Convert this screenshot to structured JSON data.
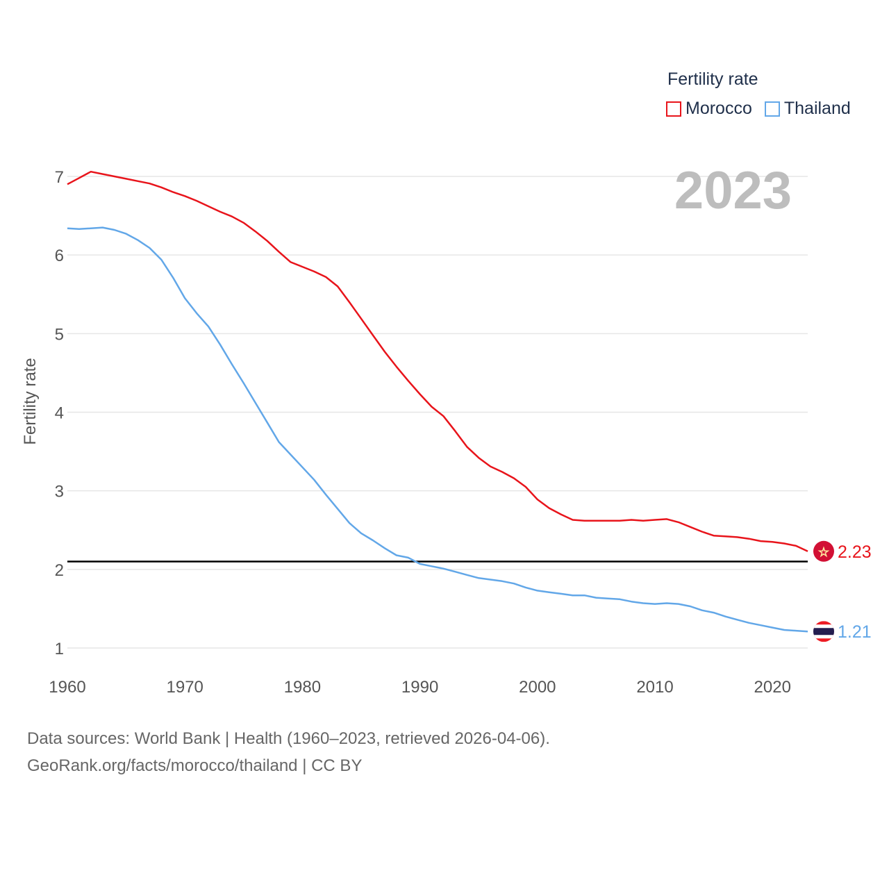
{
  "chart_data": {
    "type": "line",
    "title": "",
    "year_label": "2023",
    "legend_title": "Fertility rate",
    "ylabel": "Fertility rate",
    "xlabel": "",
    "xlim": [
      1960,
      2023
    ],
    "ylim": [
      0.9,
      7.6
    ],
    "x_ticks": [
      1960,
      1970,
      1980,
      1990,
      2000,
      2010,
      2020
    ],
    "y_ticks": [
      1,
      2,
      3,
      4,
      5,
      6,
      7
    ],
    "reference_line": 2.1,
    "x": [
      1960,
      1961,
      1962,
      1963,
      1964,
      1965,
      1966,
      1967,
      1968,
      1969,
      1970,
      1971,
      1972,
      1973,
      1974,
      1975,
      1976,
      1977,
      1978,
      1979,
      1980,
      1981,
      1982,
      1983,
      1984,
      1985,
      1986,
      1987,
      1988,
      1989,
      1990,
      1991,
      1992,
      1993,
      1994,
      1995,
      1996,
      1997,
      1998,
      1999,
      2000,
      2001,
      2002,
      2003,
      2004,
      2005,
      2006,
      2007,
      2008,
      2009,
      2010,
      2011,
      2012,
      2013,
      2014,
      2015,
      2016,
      2017,
      2018,
      2019,
      2020,
      2021,
      2022,
      2023
    ],
    "series": [
      {
        "name": "Morocco",
        "color": "#e8141b",
        "end_label": "2.23",
        "flag_icon": "morocco-flag-icon",
        "values": [
          6.9,
          6.98,
          7.06,
          7.03,
          7.0,
          6.97,
          6.94,
          6.91,
          6.86,
          6.8,
          6.75,
          6.69,
          6.62,
          6.55,
          6.49,
          6.41,
          6.3,
          6.18,
          6.04,
          5.91,
          5.85,
          5.79,
          5.72,
          5.6,
          5.4,
          5.19,
          4.98,
          4.77,
          4.58,
          4.4,
          4.23,
          4.07,
          3.95,
          3.76,
          3.56,
          3.42,
          3.31,
          3.24,
          3.16,
          3.05,
          2.89,
          2.78,
          2.7,
          2.63,
          2.62,
          2.62,
          2.62,
          2.62,
          2.63,
          2.62,
          2.63,
          2.64,
          2.6,
          2.54,
          2.48,
          2.43,
          2.42,
          2.41,
          2.39,
          2.36,
          2.35,
          2.33,
          2.3,
          2.23
        ]
      },
      {
        "name": "Thailand",
        "color": "#62a7e8",
        "end_label": "1.21",
        "flag_icon": "thailand-flag-icon",
        "values": [
          6.34,
          6.33,
          6.34,
          6.35,
          6.32,
          6.27,
          6.19,
          6.09,
          5.94,
          5.71,
          5.45,
          5.26,
          5.09,
          4.86,
          4.61,
          4.37,
          4.12,
          3.87,
          3.62,
          3.46,
          3.3,
          3.14,
          2.95,
          2.77,
          2.59,
          2.46,
          2.37,
          2.27,
          2.18,
          2.15,
          2.07,
          2.04,
          2.01,
          1.97,
          1.93,
          1.89,
          1.87,
          1.85,
          1.82,
          1.77,
          1.73,
          1.71,
          1.69,
          1.67,
          1.67,
          1.64,
          1.63,
          1.62,
          1.59,
          1.57,
          1.56,
          1.57,
          1.56,
          1.53,
          1.48,
          1.45,
          1.4,
          1.36,
          1.32,
          1.29,
          1.26,
          1.23,
          1.22,
          1.21
        ]
      }
    ]
  },
  "footer": {
    "line1": "Data sources: World Bank | Health (1960–2023, retrieved 2026-04-06).",
    "line2": "GeoRank.org/facts/morocco/thailand | CC BY"
  }
}
